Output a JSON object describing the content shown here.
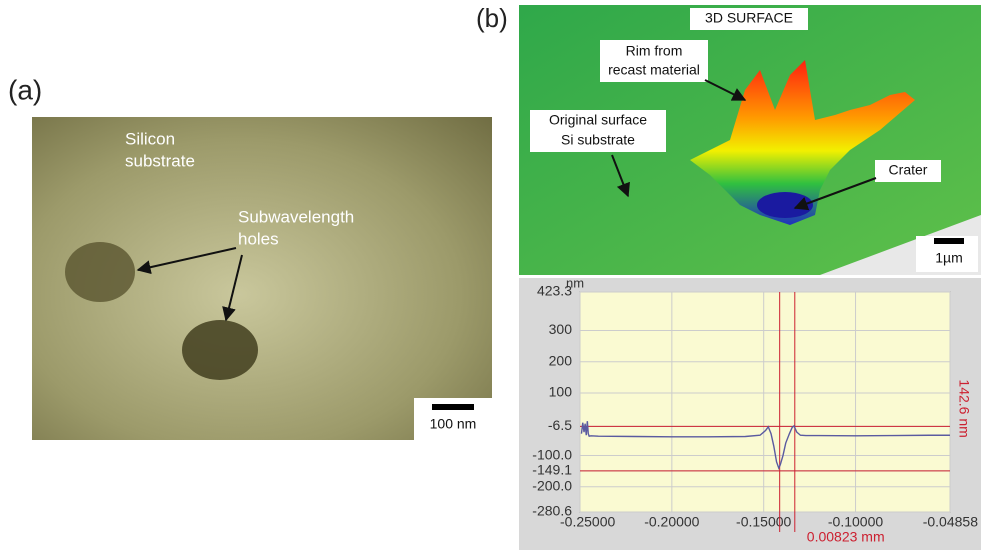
{
  "panel_a": {
    "label": "(a)",
    "substrate_label": [
      "Silicon",
      "substrate"
    ],
    "holes_label": [
      "Subwavelength",
      "holes"
    ],
    "scale_bar": "100 nm"
  },
  "panel_b": {
    "label": "(b)",
    "title": "3D SURFACE",
    "rim_label": [
      "Rim from",
      "recast material"
    ],
    "surface_label": [
      "Original surface",
      "Si substrate"
    ],
    "crater_label": "Crater",
    "scale_bar": "1µm"
  },
  "chart_data": {
    "type": "line",
    "y_label": "nm",
    "color": "#5a5aa0",
    "grid": true,
    "x": [
      -0.2492,
      -0.2485,
      -0.2478,
      -0.2472,
      -0.2466,
      -0.246,
      -0.2455,
      -0.245,
      -0.244,
      -0.24,
      -0.22,
      -0.2,
      -0.18,
      -0.16,
      -0.152,
      -0.149,
      -0.1475,
      -0.146,
      -0.1445,
      -0.143,
      -0.1418,
      -0.141,
      -0.1395,
      -0.138,
      -0.136,
      -0.1345,
      -0.1335,
      -0.132,
      -0.13,
      -0.127,
      -0.12,
      -0.1,
      -0.08,
      -0.06,
      -0.0486
    ],
    "values": [
      -30,
      5,
      -25,
      2,
      -35,
      10,
      -30,
      -38,
      -37,
      -38,
      -39,
      -40,
      -40,
      -39,
      -35,
      -20,
      -8,
      -30,
      -70,
      -120,
      -140,
      -130,
      -100,
      -60,
      -30,
      -10,
      -5,
      -25,
      -35,
      -36,
      -36,
      -37,
      -36,
      -35,
      -35
    ],
    "xlim": [
      -0.25,
      -0.04858
    ],
    "ylim": [
      -280.6,
      423.3
    ],
    "xticks": [
      {
        "value": -0.25,
        "label": "-0.25000"
      },
      {
        "value": -0.2,
        "label": "-0.20000"
      },
      {
        "value": -0.15,
        "label": "-0.15000"
      },
      {
        "value": -0.1,
        "label": "-0.10000"
      },
      -0.04858
    ],
    "yticks": [
      423.3,
      300,
      200,
      100,
      -6.5,
      {
        "value": -100,
        "label": "-100.0"
      },
      -149.1,
      {
        "value": -200,
        "label": "-200.0"
      },
      -280.6
    ],
    "cursor_x": [
      -0.1413,
      -0.13307
    ],
    "cursor_y": [
      -6.5,
      -149.1
    ],
    "cursor_color": "#cc2030",
    "annotations": {
      "height": "142.6 nm",
      "width": "0.00823 mm"
    }
  }
}
